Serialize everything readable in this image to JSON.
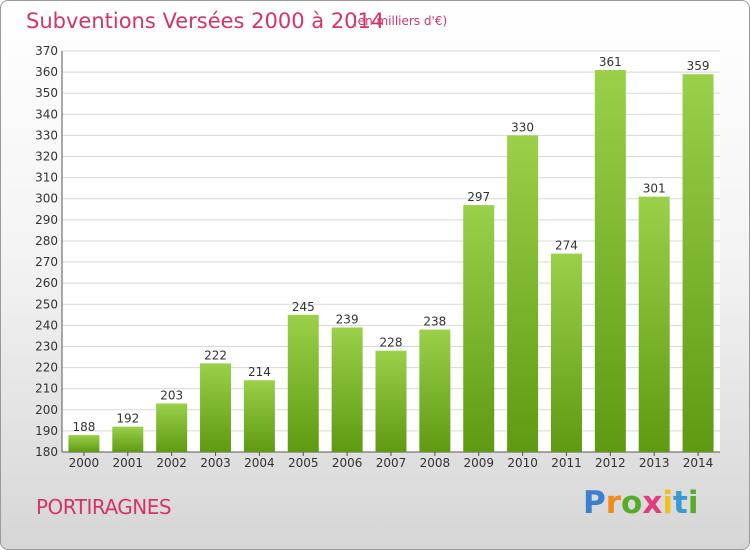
{
  "header": {
    "title": "Subventions Versées 2000 à 2014",
    "subtitle": "(en milliers d'€)"
  },
  "footer": {
    "commune": "PORTIRAGNES",
    "logo_text": "Proxiti"
  },
  "colors": {
    "title": "#d6336c",
    "bar_light": "#9ad04a",
    "bar_dark": "#5f9a12",
    "grid": "#d8d8d8",
    "axis_text": "#333333"
  },
  "chart_data": {
    "type": "bar",
    "title": "Subventions Versées 2000 à 2014",
    "subtitle": "(en milliers d'€)",
    "categories": [
      "2000",
      "2001",
      "2002",
      "2003",
      "2004",
      "2005",
      "2006",
      "2007",
      "2008",
      "2009",
      "2010",
      "2011",
      "2012",
      "2013",
      "2014"
    ],
    "values": [
      188,
      192,
      203,
      222,
      214,
      245,
      239,
      228,
      238,
      297,
      330,
      274,
      361,
      301,
      359
    ],
    "xlabel": "",
    "ylabel": "",
    "ylim": [
      180,
      370
    ],
    "ytick_step": 10,
    "grid": true,
    "data_labels": true
  }
}
